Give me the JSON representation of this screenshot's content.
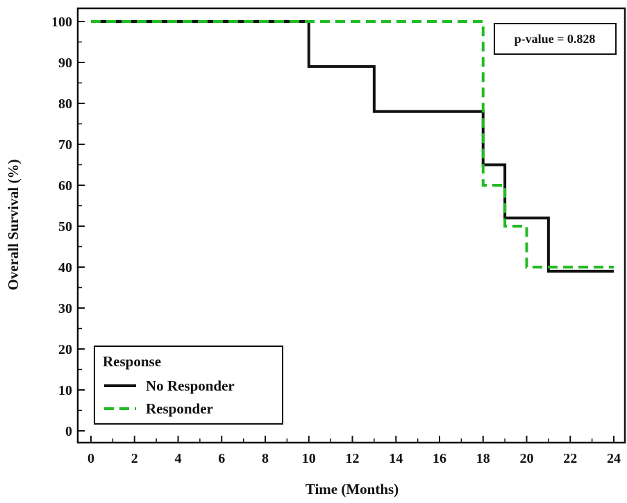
{
  "chart_data": {
    "type": "line",
    "step": true,
    "title": "",
    "xlabel": "Time (Months)",
    "ylabel": "Overall Survival (%)",
    "xlim": [
      0,
      24
    ],
    "ylim": [
      0,
      100
    ],
    "x_ticks": [
      "0",
      "2",
      "4",
      "6",
      "8",
      "10",
      "12",
      "14",
      "16",
      "18",
      "20",
      "22",
      "24"
    ],
    "y_ticks": [
      "0",
      "10",
      "20",
      "30",
      "40",
      "50",
      "60",
      "70",
      "80",
      "90",
      "100"
    ],
    "grid": false,
    "legend": {
      "title": "Response",
      "placement": "bottom-left"
    },
    "annotation": "p-value = 0.828",
    "series": [
      {
        "name": "No Responder",
        "color": "#111111",
        "style": "solid",
        "x": [
          0,
          10,
          13,
          18,
          19,
          21,
          24
        ],
        "y": [
          100,
          89,
          78,
          65,
          52,
          39,
          39
        ]
      },
      {
        "name": "Responder",
        "color": "#22bb22",
        "style": "dashed",
        "x": [
          0,
          18,
          19,
          20,
          24
        ],
        "y": [
          100,
          60,
          50,
          40,
          40
        ]
      }
    ]
  }
}
